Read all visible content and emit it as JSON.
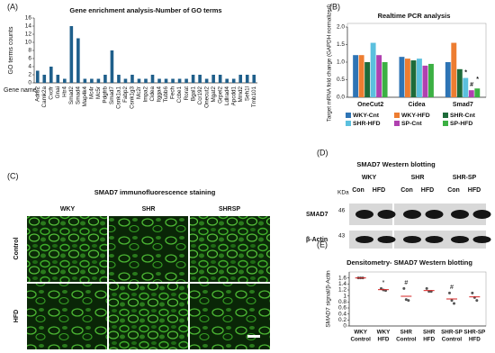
{
  "chart_data": [
    {
      "type": "bar",
      "title": "Gene enrichment analysis-Number of GO terms",
      "ylabel": "GO terms counts",
      "xlabel": "Gene name:",
      "categories": [
        "Adrb2",
        "Camk2a",
        "Cxcfr",
        "Gnai",
        "Htr4",
        "Smad2",
        "Smad4",
        "Map4k4",
        "Mc4r",
        "Mc5r",
        "Pdgfrb",
        "Smad7",
        "Csnk1a1",
        "Fabp2",
        "Csnk1g3",
        "Mc2r",
        "Impa2",
        "Cidea",
        "Itgga4",
        "Tubb6",
        "Fech",
        "Ccbe1",
        "Rorat",
        "Bgal1",
        "Ccr192",
        "Onecut2",
        "Mgat2",
        "Grpel2",
        "Ldlrad4",
        "Apcdd1",
        "Mmd2",
        "Seh1l",
        "Tmb101"
      ],
      "values": [
        3,
        2,
        4,
        2,
        1,
        14,
        11,
        1,
        1,
        1,
        2,
        8,
        2,
        1,
        2,
        1,
        1,
        2,
        1,
        1,
        1,
        1,
        1,
        2,
        2,
        1,
        2,
        2,
        1,
        1,
        2,
        2,
        2
      ],
      "color": "#1f5f8b",
      "ylim": [
        0,
        16
      ],
      "yticks": [
        0,
        2,
        4,
        6,
        8,
        10,
        12,
        14,
        16
      ]
    },
    {
      "type": "grouped-bar",
      "title": "Realtime PCR analysis",
      "ylabel": "Target mRNA fold change (GAPDH normalized)",
      "categories": [
        "OneCut2",
        "Cidea",
        "Smad7"
      ],
      "series": [
        {
          "name": "WKY-Cnt",
          "color": "#2e74b5",
          "values": [
            1.2,
            1.15,
            1.0
          ]
        },
        {
          "name": "WKY-HFD",
          "color": "#ed7d31",
          "values": [
            1.2,
            1.1,
            1.55
          ]
        },
        {
          "name": "SHR-Cnt",
          "color": "#1e6b3a",
          "values": [
            1.0,
            1.05,
            0.8
          ]
        },
        {
          "name": "SHR-HFD",
          "color": "#5bc0de",
          "values": [
            1.55,
            1.1,
            0.55
          ]
        },
        {
          "name": "SP-Cnt",
          "color": "#b040b0",
          "values": [
            1.2,
            0.9,
            0.2
          ]
        },
        {
          "name": "SP-HFD",
          "color": "#3cb043",
          "values": [
            1.0,
            0.95,
            0.25
          ]
        }
      ],
      "annotations": [
        "*",
        "#",
        "*"
      ],
      "ylim": [
        0,
        2
      ],
      "yticks": [
        {
          "value": 0,
          "label": "0.0"
        },
        {
          "value": 0.5,
          "label": "0.5"
        },
        {
          "value": 1,
          "label": "1.0"
        },
        {
          "value": 1.5,
          "label": "1.5"
        },
        {
          "value": 2,
          "label": "2.0"
        }
      ]
    },
    {
      "type": "dot",
      "title": "Densitometry- SMAD7 Western blotting",
      "ylabel": "SMAD7 signal/β-Actin",
      "categories": [
        [
          "WKY",
          "Control"
        ],
        [
          "WKY",
          "HFD"
        ],
        [
          "SHR",
          "Control"
        ],
        [
          "SHR",
          "HFD"
        ],
        [
          "SHR-SP",
          "Control"
        ],
        [
          "SHR-SP",
          "HFD"
        ]
      ],
      "points": [
        [
          1.6,
          1.6,
          1.6
        ],
        [
          1.25,
          1.2,
          1.18
        ],
        [
          1.25,
          0.88,
          0.85
        ],
        [
          1.25,
          1.15,
          1.15
        ],
        [
          1.1,
          0.85,
          0.75
        ],
        [
          1.1,
          0.95,
          0.85
        ]
      ],
      "means": [
        1.6,
        1.21,
        0.99,
        1.18,
        0.9,
        0.97
      ],
      "mean_color": "#d62020",
      "point_color": "#555555",
      "annotations": [
        "*",
        "#",
        "#"
      ],
      "ylim": [
        0,
        1.8
      ],
      "yticks": [
        0,
        0.2,
        0.4,
        0.6,
        0.8,
        1,
        1.2,
        1.4,
        1.6
      ]
    }
  ],
  "figure": {
    "panel_labels": [
      "(A)",
      "(B)",
      "(C)",
      "(D)",
      "(E)"
    ],
    "immunofluorescence": {
      "title": "SMAD7 immunofluorescence staining",
      "columns": [
        "WKY",
        "SHR",
        "SHRSP"
      ],
      "rows": [
        "Control",
        "HFD"
      ]
    },
    "western_blot": {
      "title": "SMAD7 Western blotting",
      "groups": [
        "WKY",
        "SHR",
        "SHR-SP"
      ],
      "lanes": [
        "Con",
        "HFD",
        "Con",
        "HFD",
        "Con",
        "HFD"
      ],
      "unit": "KDa",
      "markers": [
        "46",
        "43"
      ],
      "rows": [
        "SMAD7",
        "β-Actin"
      ]
    }
  }
}
